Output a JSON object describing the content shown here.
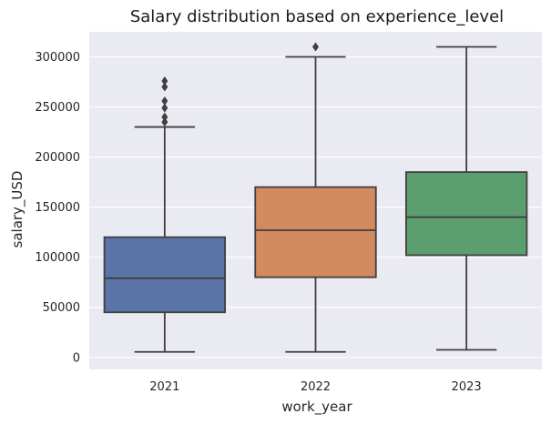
{
  "chart_data": {
    "type": "box",
    "title": "Salary distribution based on experience_level",
    "xlabel": "work_year",
    "ylabel": "salary_USD",
    "categories": [
      "2021",
      "2022",
      "2023"
    ],
    "ylim": [
      -12000,
      325000
    ],
    "yticks": [
      0,
      50000,
      100000,
      150000,
      200000,
      250000,
      300000
    ],
    "ytick_labels": [
      "0",
      "50000",
      "100000",
      "150000",
      "200000",
      "250000",
      "300000"
    ],
    "grid": true,
    "boxes": [
      {
        "category": "2021",
        "whisker_low": 5500,
        "q1": 45000,
        "median": 79000,
        "q3": 120000,
        "whisker_high": 230000,
        "outliers": [
          235000,
          240000,
          249000,
          256000,
          270000,
          276000
        ],
        "color": "#5a74a8"
      },
      {
        "category": "2022",
        "whisker_low": 5500,
        "q1": 80000,
        "median": 127000,
        "q3": 170000,
        "whisker_high": 300000,
        "outliers": [
          310000
        ],
        "color": "#d48a5f"
      },
      {
        "category": "2023",
        "whisker_low": 7500,
        "q1": 102000,
        "median": 140000,
        "q3": 185000,
        "whisker_high": 310000,
        "outliers": [],
        "color": "#5c9f6e"
      }
    ],
    "colors": {
      "plot_background": "#eaeaf2",
      "grid": "#ffffff",
      "line": "#3f3f3f"
    }
  }
}
